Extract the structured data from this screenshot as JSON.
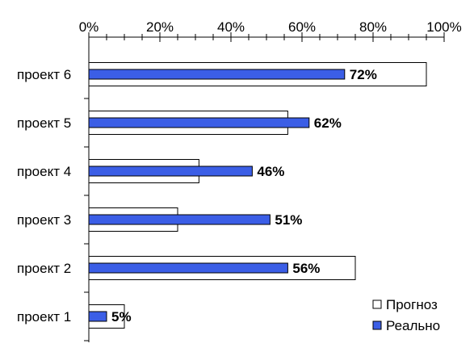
{
  "chart_data": {
    "type": "bar",
    "orientation": "horizontal",
    "categories": [
      "проект 6",
      "проект 5",
      "проект 4",
      "проект 3",
      "проект 2",
      "проект 1"
    ],
    "series": [
      {
        "name": "Прогноз",
        "values": [
          95,
          56,
          31,
          25,
          75,
          10
        ],
        "color": "#ffffff"
      },
      {
        "name": "Реально",
        "values": [
          72,
          62,
          46,
          51,
          56,
          5
        ],
        "color": "#3b5ee6"
      }
    ],
    "data_labels": [
      "72%",
      "62%",
      "46%",
      "51%",
      "56%",
      "5%"
    ],
    "x_ticks": [
      "0%",
      "20%",
      "40%",
      "60%",
      "80%",
      "100%"
    ],
    "xlim": [
      0,
      100
    ],
    "x_axis_position": "top",
    "grid": false,
    "legend_position": "bottom-right"
  }
}
